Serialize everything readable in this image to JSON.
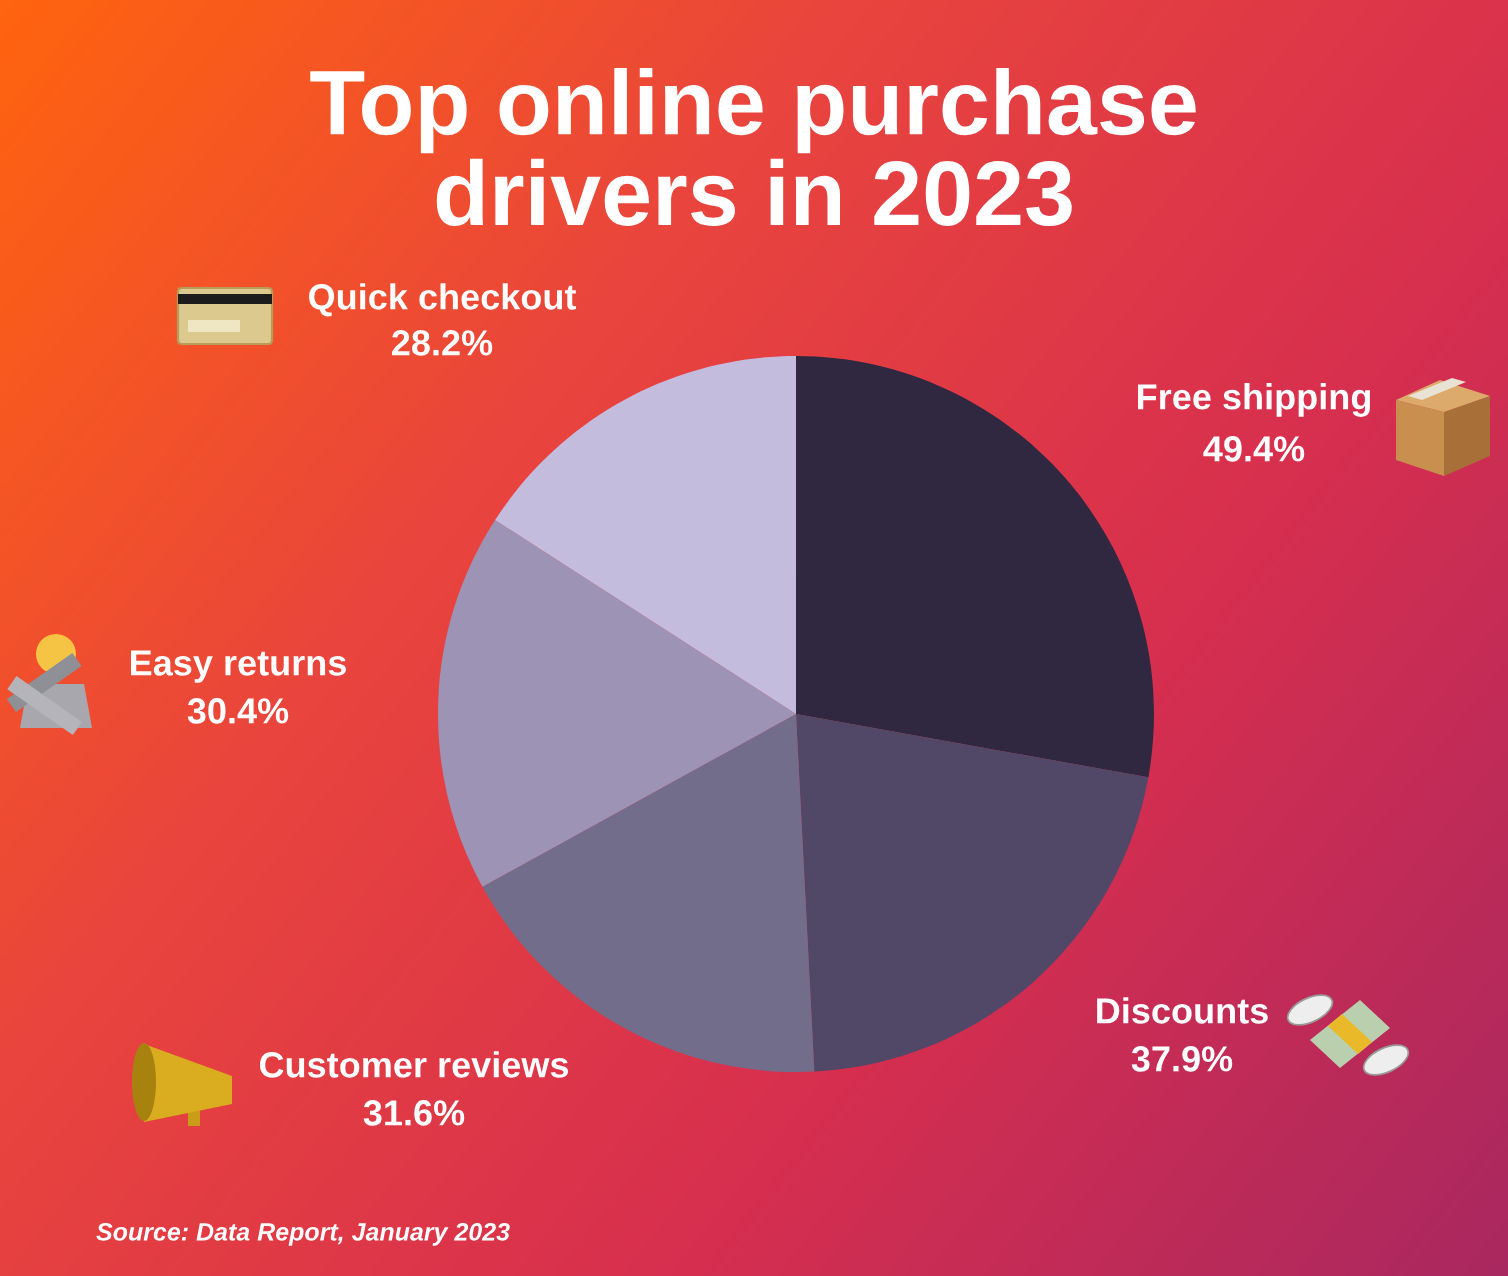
{
  "chart_data": {
    "type": "pie",
    "title": "Top online purchase\ndrivers in 2023",
    "categories": [
      "Free shipping",
      "Discounts",
      "Customer reviews",
      "Easy returns",
      "Quick checkout"
    ],
    "values": [
      49.4,
      37.9,
      31.6,
      30.4,
      28.2
    ],
    "value_labels": [
      "49.4%",
      "37.9%",
      "31.6%",
      "30.4%",
      "28.2%"
    ],
    "colors": [
      "#302840",
      "#504866",
      "#736d8c",
      "#9c93b5",
      "#c4bcdd"
    ],
    "annotations": [
      "Source: Data Report, January 2023"
    ]
  }
}
